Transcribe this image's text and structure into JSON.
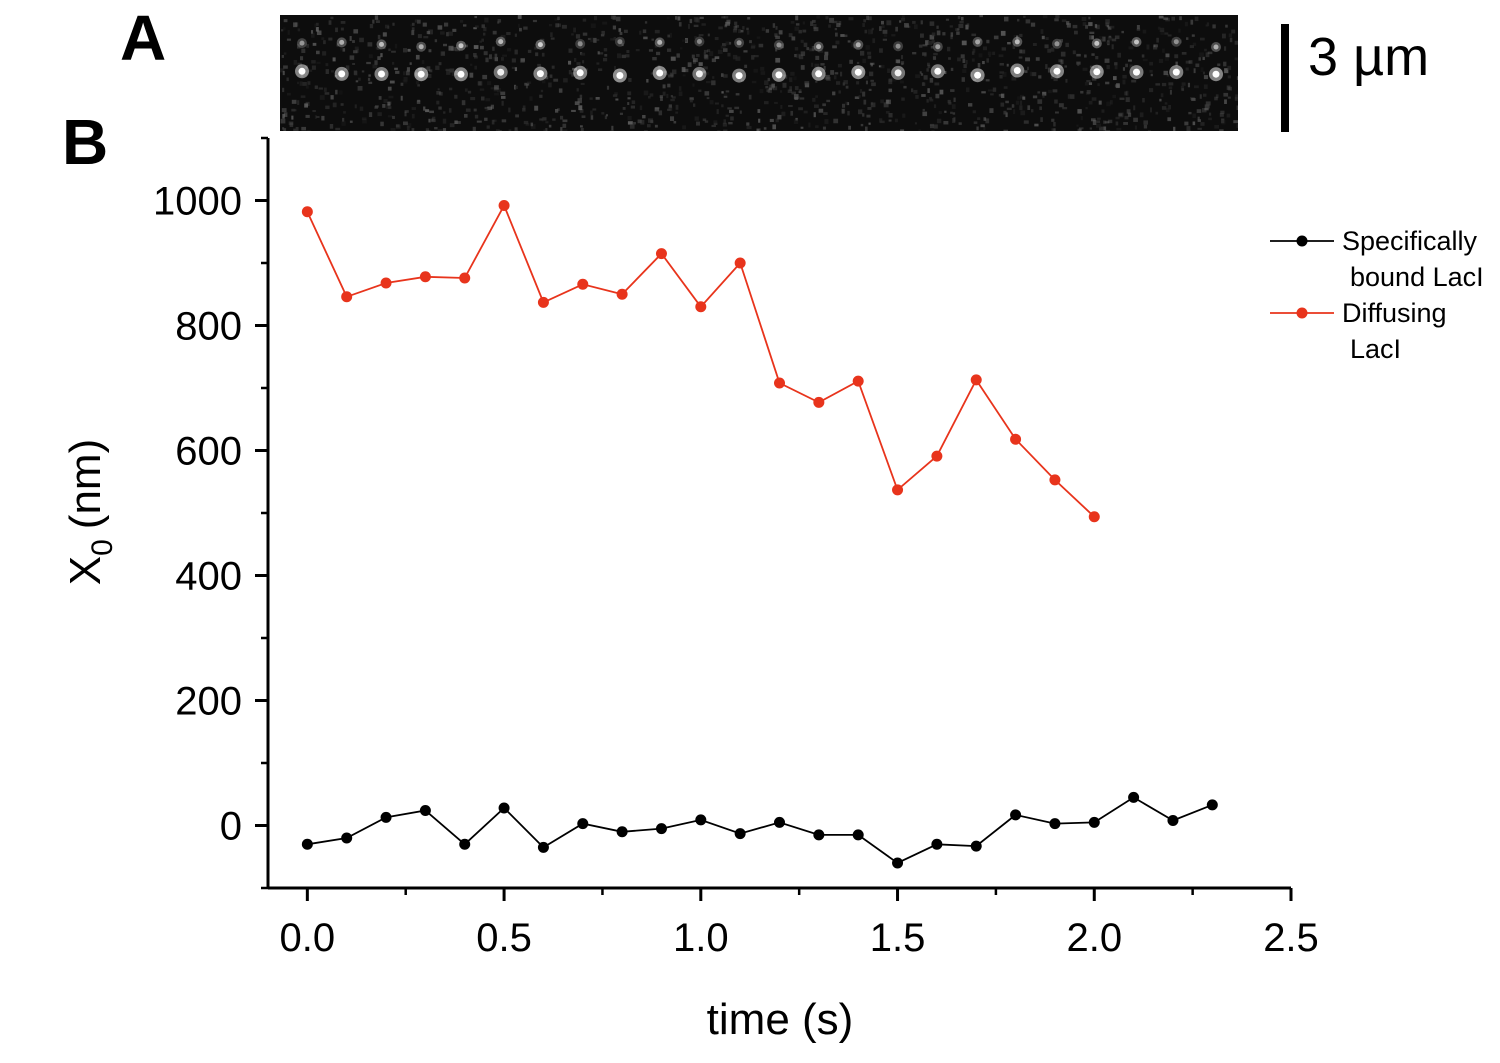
{
  "panels": {
    "a_label": "A",
    "b_label": "B"
  },
  "kymograph": {
    "scale_bar_label": "3 µm",
    "rows": [
      0.25,
      0.5
    ],
    "spots": 24
  },
  "chart_data": {
    "type": "line",
    "xlabel": "time (s)",
    "ylabel_main": "X",
    "ylabel_sub": "0",
    "ylabel_unit": "(nm)",
    "xlim": [
      -0.1,
      2.5
    ],
    "ylim": [
      -100,
      1100
    ],
    "xticks": [
      0.0,
      0.5,
      1.0,
      1.5,
      2.0,
      2.5
    ],
    "xtick_labels": [
      "0.0",
      "0.5",
      "1.0",
      "1.5",
      "2.0",
      "2.5"
    ],
    "yticks": [
      0,
      200,
      400,
      600,
      800,
      1000
    ],
    "ytick_labels": [
      "0",
      "200",
      "400",
      "600",
      "800",
      "1000"
    ],
    "grid": false,
    "legend_position": "top-right",
    "series": [
      {
        "name_line1": "Specifically",
        "name_line2": "bound LacI",
        "color": "#000000",
        "x": [
          0.0,
          0.1,
          0.2,
          0.3,
          0.4,
          0.5,
          0.6,
          0.7,
          0.8,
          0.9,
          1.0,
          1.1,
          1.2,
          1.3,
          1.4,
          1.5,
          1.6,
          1.7,
          1.8,
          1.9,
          2.0,
          2.1,
          2.2,
          2.3
        ],
        "y": [
          -30,
          -20,
          13,
          24,
          -30,
          28,
          -35,
          3,
          -10,
          -5,
          9,
          -13,
          5,
          -15,
          -15,
          -60,
          -30,
          -33,
          17,
          3,
          5,
          45,
          8,
          33
        ]
      },
      {
        "name_line1": "Diffusing",
        "name_line2": "LacI",
        "color": "#e8341c",
        "x": [
          0.0,
          0.1,
          0.2,
          0.3,
          0.4,
          0.5,
          0.6,
          0.7,
          0.8,
          0.9,
          1.0,
          1.1,
          1.2,
          1.3,
          1.4,
          1.5,
          1.6,
          1.7,
          1.8,
          1.9,
          2.0
        ],
        "y": [
          982,
          846,
          868,
          878,
          876,
          992,
          837,
          866,
          850,
          915,
          830,
          900,
          708,
          677,
          711,
          537,
          591,
          713,
          618,
          553,
          494
        ]
      }
    ]
  }
}
